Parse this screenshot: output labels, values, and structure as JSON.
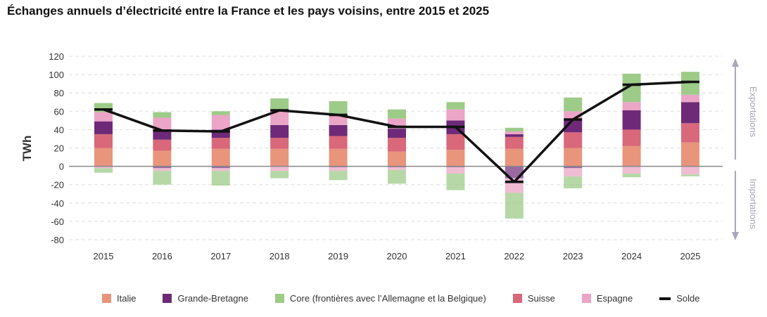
{
  "chart_data": {
    "type": "bar",
    "title": "Échanges annuels d’électricité entre la France et les pays voisins, entre 2015 et 2025",
    "ylabel": "TWh",
    "xlabel": "",
    "ylim": [
      -80,
      120
    ],
    "yticks": [
      120,
      100,
      80,
      60,
      40,
      20,
      0,
      -20,
      -40,
      -60,
      -80
    ],
    "ytick_labels": [
      "120",
      "100",
      "80",
      "60",
      "40",
      "20",
      "0",
      "-20",
      "-40",
      "-60",
      "-80"
    ],
    "grid": true,
    "categories": [
      "2015",
      "2016",
      "2017",
      "2018",
      "2019",
      "2020",
      "2021",
      "2022",
      "2023",
      "2024",
      "2025"
    ],
    "annotations": {
      "exports": "Exportations",
      "imports": "Importations"
    },
    "series": [
      {
        "name": "Italie",
        "color": "#E8957C",
        "positive": [
          20,
          17,
          19,
          19,
          19,
          16,
          18,
          19,
          20,
          22,
          26
        ],
        "negative": [
          0,
          0,
          0,
          0,
          0,
          0,
          0,
          0,
          0,
          0,
          0
        ]
      },
      {
        "name": "Suisse",
        "color": "#D9687A",
        "positive": [
          15,
          12,
          12,
          12,
          14,
          15,
          17,
          13,
          17,
          18,
          21
        ],
        "negative": [
          0,
          0,
          0,
          0,
          0,
          0,
          0,
          0,
          0,
          0,
          0
        ]
      },
      {
        "name": "Grande-Bretagne",
        "color": "#6E2A78",
        "positive": [
          14,
          11,
          9,
          14,
          12,
          10,
          15,
          3,
          13,
          21,
          23
        ],
        "negative": [
          0,
          -2,
          -2,
          0,
          -1,
          -1,
          -1,
          -13,
          -2,
          0,
          0
        ]
      },
      {
        "name": "Espagne",
        "color": "#EBA5C6",
        "positive": [
          10,
          13,
          16,
          15,
          10,
          11,
          12,
          3,
          10,
          9,
          8
        ],
        "negative": [
          -2,
          -3,
          -3,
          -5,
          -4,
          -3,
          -7,
          -16,
          -9,
          -8,
          -9
        ]
      },
      {
        "name": "Core (frontières avec l’Allemagne et la Belgique)",
        "color": "#9DCB88",
        "positive": [
          10,
          6,
          4,
          14,
          16,
          10,
          8,
          4,
          15,
          31,
          25
        ],
        "negative": [
          -5,
          -15,
          -16,
          -8,
          -10,
          -15,
          -18,
          -28,
          -13,
          -4,
          -2
        ]
      }
    ],
    "solde": {
      "name": "Solde",
      "color": "#111111",
      "values": [
        62,
        39,
        38,
        61,
        56,
        43,
        43,
        -17,
        51,
        89,
        92
      ]
    },
    "legend_order": [
      "Italie",
      "Grande-Bretagne",
      "Core (frontières avec l’Allemagne et la Belgique)",
      "Suisse",
      "Espagne",
      "Solde"
    ]
  }
}
